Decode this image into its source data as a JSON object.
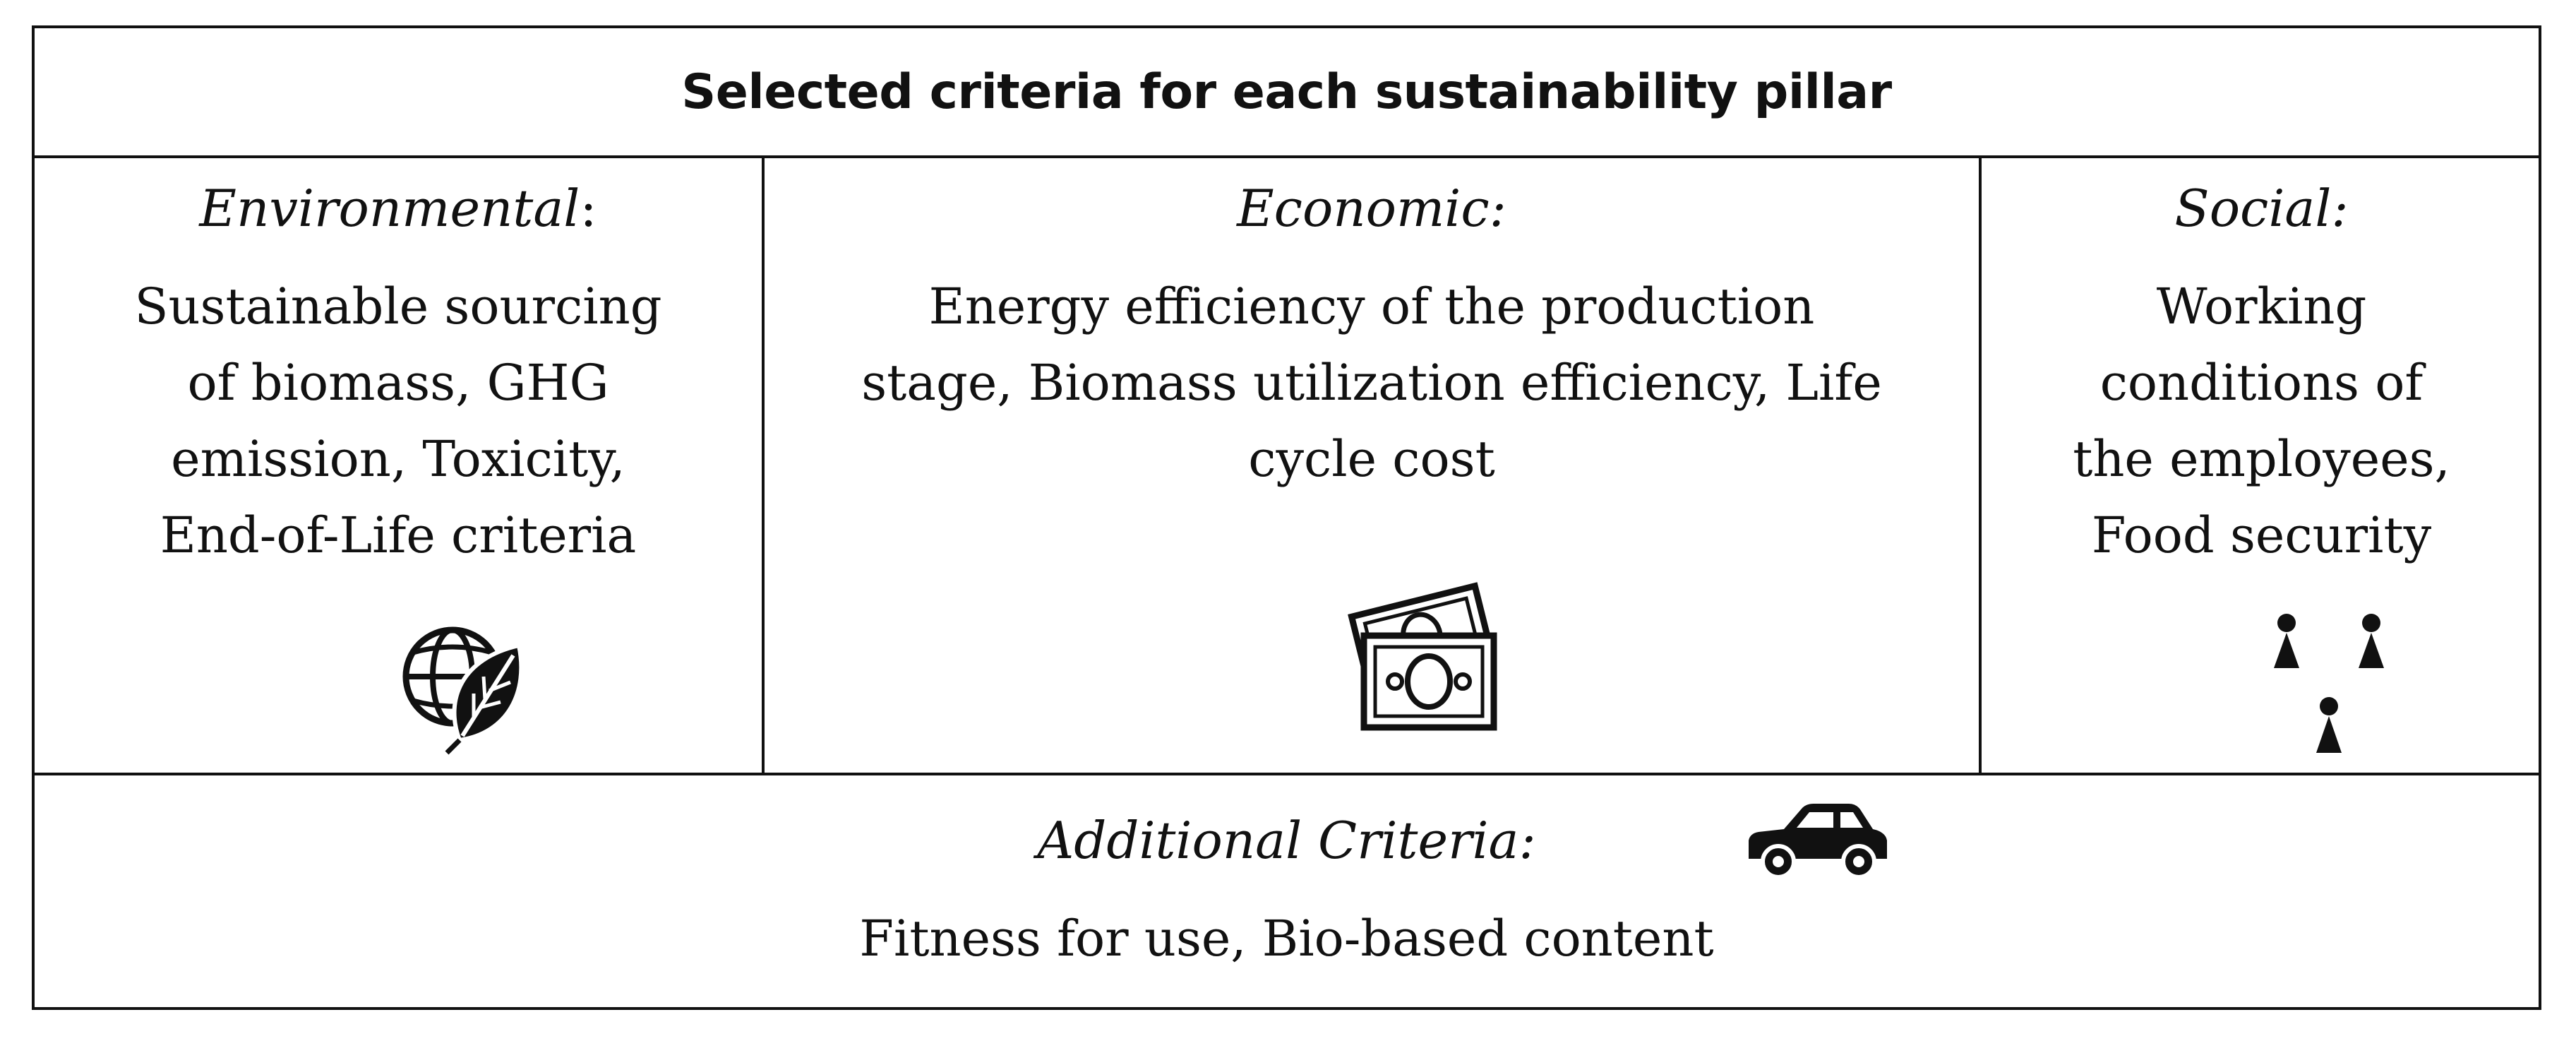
{
  "title": "Selected criteria for each sustainability pillar",
  "pillars": {
    "environmental": {
      "heading": "Environmental",
      "heading_suffix": ":",
      "lines": [
        "Sustainable sourcing",
        "of biomass, GHG",
        "emission, Toxicity,",
        "End-of-Life criteria"
      ],
      "icon": "globe-leaf-icon"
    },
    "economic": {
      "heading": "Economic:",
      "lines": [
        "Energy efficiency of the production",
        "stage, Biomass utilization efficiency, Life",
        "cycle cost"
      ],
      "icon": "banknotes-icon"
    },
    "social": {
      "heading": "Social:",
      "lines": [
        "Working",
        "conditions of",
        "the employees,",
        "Food security"
      ],
      "icon": "people-icon"
    }
  },
  "additional": {
    "heading": "Additional Criteria:",
    "text": "Fitness for use, Bio-based content",
    "icon": "car-icon"
  },
  "colors": {
    "line": "#111111",
    "text": "#111111",
    "background": "#ffffff"
  }
}
